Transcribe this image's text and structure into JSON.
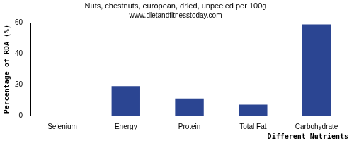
{
  "chart_data": {
    "type": "bar",
    "title": "Nuts, chestnuts, european, dried, unpeeled per 100g",
    "subtitle": "www.dietandfitnesstoday.com",
    "x_label": "Different Nutrients",
    "y_label": "Percentage of RDA (%)",
    "categories": [
      "Selenium",
      "Energy",
      "Protein",
      "Total Fat",
      "Carbohydrate"
    ],
    "values": [
      0,
      19,
      11,
      7,
      59
    ],
    "color": "#2b4592",
    "ylim": [
      0,
      60
    ],
    "yticks": [
      0,
      20,
      40,
      60
    ],
    "grid": false
  }
}
